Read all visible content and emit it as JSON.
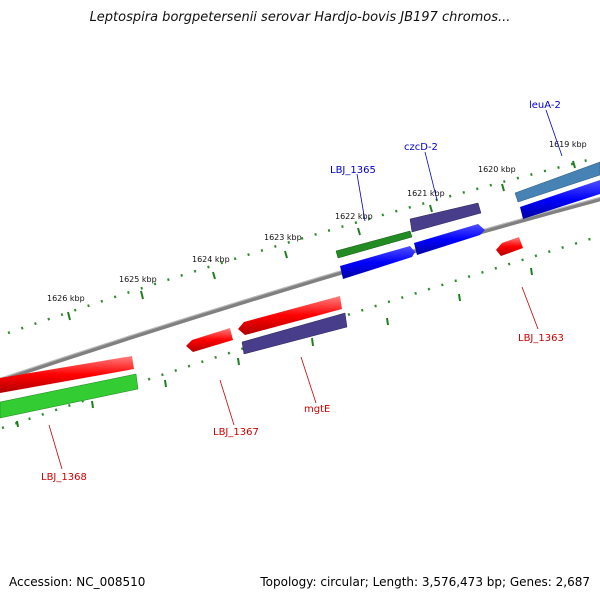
{
  "title": "Leptospira borgpetersenii serovar Hardjo-bovis JB197 chromos...",
  "footer": {
    "accession": "Accession: NC_008510",
    "summary": "Topology: circular; Length: 3,576,473 bp; Genes: 2,687"
  },
  "colors": {
    "backbone": "#808080",
    "outer_ticks": "#2e8b2e",
    "inner_ticks": "#1f7f1f",
    "forward_gene": "#0000ff",
    "reverse_gene": "#ff0000",
    "green_feature": "#228b22",
    "light_green_feature": "#33cc33",
    "purple_feature": "#483d8b",
    "steel_feature": "#4682b4",
    "forward_label": "#0000cc",
    "reverse_label": "#cc0000"
  },
  "scale": {
    "unit": "kbp",
    "ticks": [
      "1619 kbp",
      "1620 kbp",
      "1621 kbp",
      "1622 kbp",
      "1623 kbp",
      "1624 kbp",
      "1625 kbp",
      "1626 kbp"
    ]
  },
  "forward_labels": [
    "leuA-2",
    "czcD-2",
    "LBJ_1365"
  ],
  "reverse_labels": [
    "LBJ_1363",
    "mgtE",
    "LBJ_1367",
    "LBJ_1368"
  ]
}
